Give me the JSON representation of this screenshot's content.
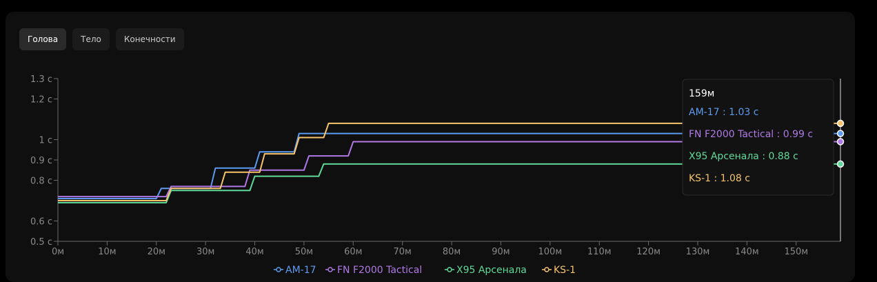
{
  "tabs": [
    {
      "label": "Голова",
      "active": true
    },
    {
      "label": "Тело",
      "active": false
    },
    {
      "label": "Конечности",
      "active": false
    }
  ],
  "colors": {
    "AM-17": "#5b9bf0",
    "FN F2000 Tactical": "#b079e6",
    "X95 Арсенала": "#5fd99a",
    "KS-1": "#f7c46c"
  },
  "tooltip": {
    "title": "159м",
    "items": [
      {
        "text": "AM-17 : 1.03 с",
        "series": "AM-17"
      },
      {
        "text": "FN F2000 Tactical : 0.99 с",
        "series": "FN F2000 Tactical"
      },
      {
        "text": "X95 Арсенала : 0.88 с",
        "series": "X95 Арсенала"
      },
      {
        "text": "KS-1 : 1.08 с",
        "series": "KS-1"
      }
    ]
  },
  "chart_data": {
    "type": "line",
    "step": true,
    "xlabel": "",
    "ylabel": "",
    "xlim": [
      0,
      159
    ],
    "ylim": [
      0.5,
      1.3
    ],
    "x_unit": "м",
    "y_unit": "с",
    "x_ticks": [
      0,
      10,
      20,
      30,
      40,
      50,
      60,
      70,
      80,
      90,
      100,
      110,
      120,
      130,
      140,
      150
    ],
    "x_tick_labels": [
      "0м",
      "10м",
      "20м",
      "30м",
      "40м",
      "50м",
      "60м",
      "70м",
      "80м",
      "90м",
      "100м",
      "110м",
      "120м",
      "130м",
      "140м",
      "150м"
    ],
    "y_ticks": [
      0.5,
      0.6,
      0.8,
      0.9,
      1.0,
      1.2,
      1.3
    ],
    "y_tick_labels": [
      "0.5 с",
      "0.6 с",
      "0.8 с",
      "0.9 с",
      "1 с",
      "1.2 с",
      "1.3 с"
    ],
    "legend_position": "bottom",
    "grid": false,
    "series": [
      {
        "name": "AM-17",
        "points": [
          [
            0,
            0.71
          ],
          [
            20,
            0.71
          ],
          [
            21,
            0.76
          ],
          [
            31,
            0.76
          ],
          [
            32,
            0.86
          ],
          [
            40,
            0.86
          ],
          [
            41,
            0.94
          ],
          [
            48,
            0.94
          ],
          [
            49,
            1.03
          ],
          [
            159,
            1.03
          ]
        ]
      },
      {
        "name": "FN F2000 Tactical",
        "points": [
          [
            0,
            0.72
          ],
          [
            22,
            0.72
          ],
          [
            23,
            0.77
          ],
          [
            38,
            0.77
          ],
          [
            39,
            0.85
          ],
          [
            50,
            0.85
          ],
          [
            51,
            0.92
          ],
          [
            59,
            0.92
          ],
          [
            60,
            0.99
          ],
          [
            159,
            0.99
          ]
        ]
      },
      {
        "name": "X95 Арсенала",
        "points": [
          [
            0,
            0.69
          ],
          [
            22,
            0.69
          ],
          [
            23,
            0.75
          ],
          [
            39,
            0.75
          ],
          [
            40,
            0.82
          ],
          [
            53,
            0.82
          ],
          [
            54,
            0.88
          ],
          [
            159,
            0.88
          ]
        ]
      },
      {
        "name": "KS-1",
        "points": [
          [
            0,
            0.7
          ],
          [
            22,
            0.7
          ],
          [
            23,
            0.76
          ],
          [
            33,
            0.76
          ],
          [
            34,
            0.84
          ],
          [
            41,
            0.84
          ],
          [
            42,
            0.93
          ],
          [
            48,
            0.93
          ],
          [
            49,
            1.01
          ],
          [
            54,
            1.01
          ],
          [
            55,
            1.08
          ],
          [
            159,
            1.08
          ]
        ]
      }
    ]
  }
}
